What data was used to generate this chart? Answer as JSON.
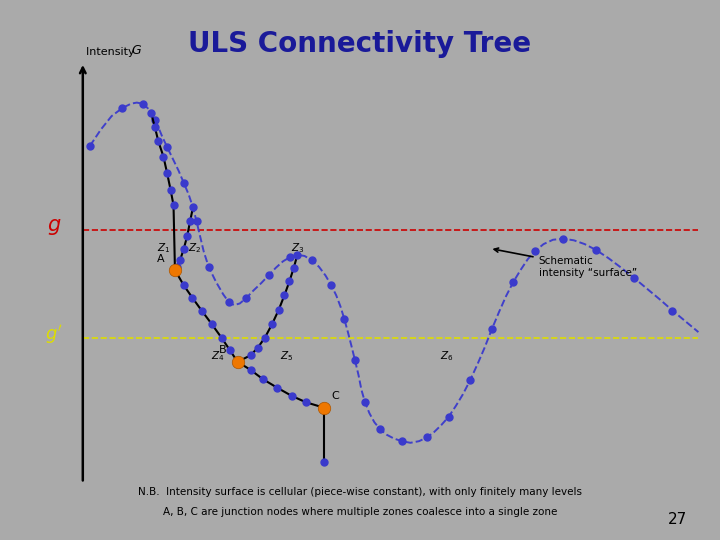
{
  "title": "ULS Connectivity Tree",
  "title_color": "#1a1a99",
  "title_fontsize": 20,
  "bg_color": "#aaaaaa",
  "note_line1": "N.B.  Intensity surface is cellular (piece-wise constant), with only finitely many levels",
  "note_line2": "A, B, C are junction nodes where multiple zones coalesce into a single zone",
  "page_number": "27",
  "node_color_blue": "#3a3acc",
  "node_color_orange": "#ee7700",
  "g_level": 0.575,
  "g_prime_level": 0.375
}
